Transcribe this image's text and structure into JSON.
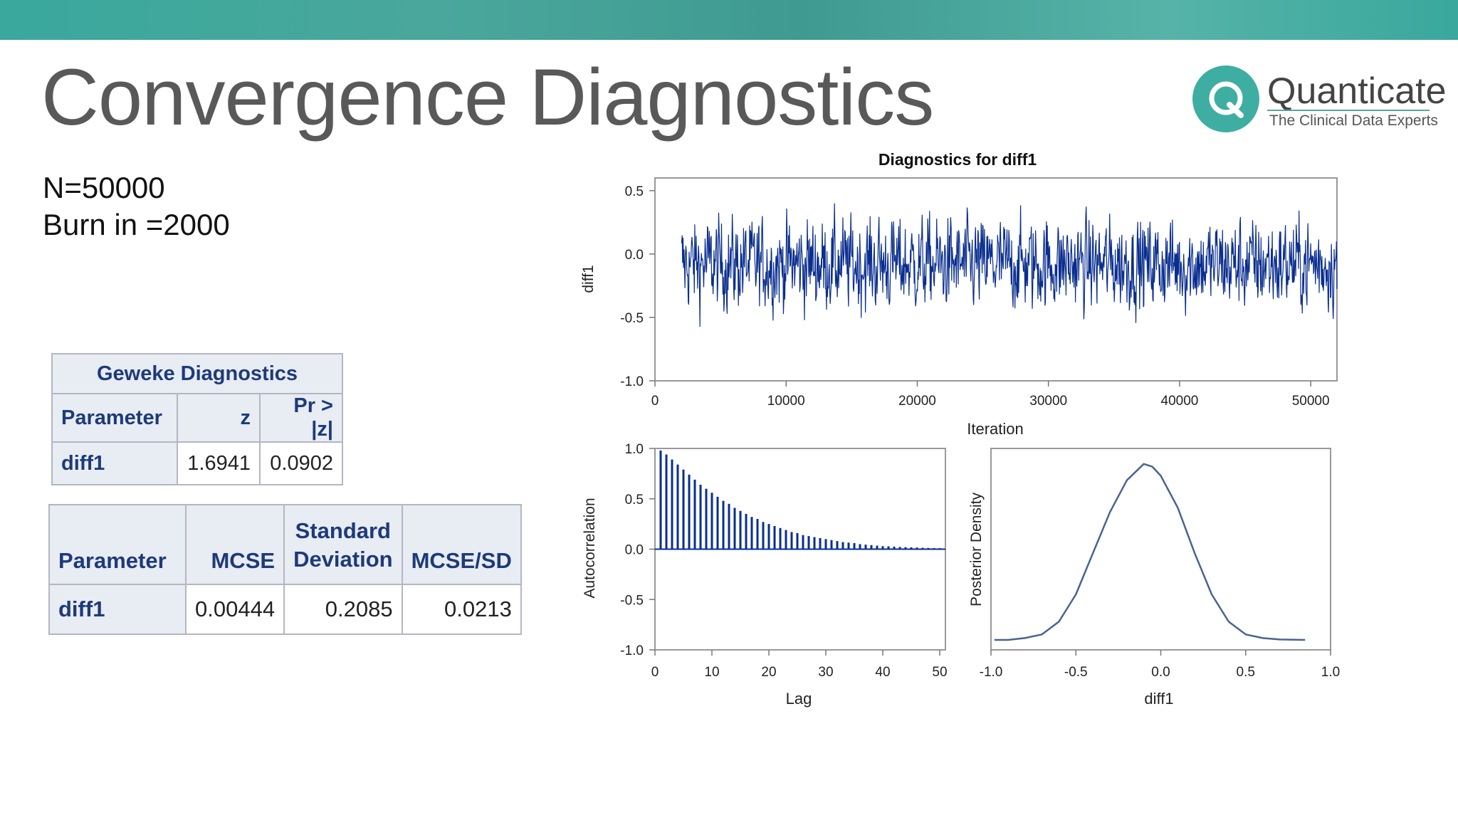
{
  "slide": {
    "title": "Convergence Diagnostics",
    "info_lines": [
      "N=50000",
      "Burn in =2000"
    ],
    "logo": {
      "name": "Quanticate",
      "tagline": "The Clinical Data Experts",
      "color": "#3eaea2"
    }
  },
  "geweke_table": {
    "caption": "Geweke Diagnostics",
    "headers": [
      "Parameter",
      "z",
      "Pr > |z|"
    ],
    "rows": [
      [
        "diff1",
        "1.6941",
        "0.0902"
      ]
    ]
  },
  "mcse_table": {
    "headers": [
      "Parameter",
      "MCSE",
      "Standard Deviation",
      "MCSE/SD"
    ],
    "rows": [
      [
        "diff1",
        "0.00444",
        "0.2085",
        "0.0213"
      ]
    ]
  },
  "chart_data": [
    {
      "type": "line",
      "title": "Diagnostics for diff1",
      "xlabel": "Iteration",
      "ylabel": "diff1",
      "xlim": [
        0,
        52000
      ],
      "ylim": [
        -1.0,
        0.6
      ],
      "x_ticks": [
        "0",
        "10000",
        "20000",
        "30000",
        "40000",
        "50000"
      ],
      "y_ticks": [
        "0.5",
        "0.0",
        "-0.5",
        "-1.0"
      ],
      "trace": {
        "start": 2000,
        "end": 52000,
        "mean": -0.08,
        "sd": 0.2085,
        "color": "#0a2e8f"
      }
    },
    {
      "type": "bar",
      "xlabel": "Lag",
      "ylabel": "Autocorrelation",
      "xlim": [
        0,
        51
      ],
      "ylim": [
        -1.0,
        1.0
      ],
      "x_ticks": [
        "0",
        "10",
        "20",
        "30",
        "40",
        "50"
      ],
      "y_ticks": [
        "1.0",
        "0.5",
        "0.0",
        "-0.5",
        "-1.0"
      ],
      "x": [
        1,
        2,
        3,
        4,
        5,
        6,
        7,
        8,
        9,
        10,
        11,
        12,
        13,
        14,
        15,
        16,
        17,
        18,
        19,
        20,
        21,
        22,
        23,
        24,
        25,
        26,
        27,
        28,
        29,
        30,
        31,
        32,
        33,
        34,
        35,
        36,
        37,
        38,
        39,
        40,
        41,
        42,
        43,
        44,
        45,
        46,
        47,
        48,
        49,
        50
      ],
      "values": [
        0.98,
        0.94,
        0.89,
        0.84,
        0.79,
        0.74,
        0.69,
        0.64,
        0.6,
        0.56,
        0.52,
        0.48,
        0.45,
        0.41,
        0.38,
        0.35,
        0.32,
        0.3,
        0.27,
        0.25,
        0.23,
        0.21,
        0.19,
        0.17,
        0.16,
        0.14,
        0.13,
        0.12,
        0.11,
        0.1,
        0.09,
        0.08,
        0.07,
        0.065,
        0.06,
        0.05,
        0.045,
        0.04,
        0.035,
        0.03,
        0.028,
        0.025,
        0.022,
        0.02,
        0.018,
        0.016,
        0.014,
        0.012,
        0.011,
        0.01
      ],
      "color": "#0a2e8f"
    },
    {
      "type": "line",
      "xlabel": "diff1",
      "ylabel": "Posterior Density",
      "xlim": [
        -1.0,
        1.0
      ],
      "x_ticks": [
        "-1.0",
        "-0.5",
        "0.0",
        "0.5",
        "1.0"
      ],
      "x": [
        -0.98,
        -0.9,
        -0.8,
        -0.7,
        -0.6,
        -0.5,
        -0.4,
        -0.3,
        -0.2,
        -0.1,
        -0.05,
        0.0,
        0.1,
        0.2,
        0.3,
        0.4,
        0.5,
        0.6,
        0.7,
        0.85
      ],
      "values": [
        0.0,
        0.0,
        0.02,
        0.06,
        0.2,
        0.5,
        0.95,
        1.4,
        1.75,
        1.93,
        1.9,
        1.8,
        1.45,
        0.95,
        0.5,
        0.2,
        0.06,
        0.02,
        0.005,
        0.0
      ],
      "color": "#4a6390"
    }
  ]
}
